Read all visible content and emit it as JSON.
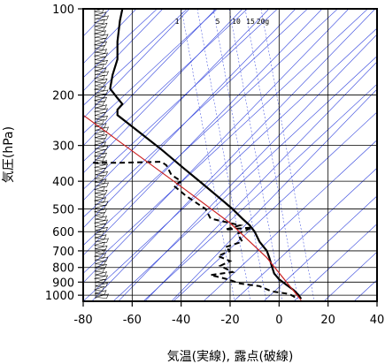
{
  "chart_data": {
    "type": "line",
    "xlabel": "気温(実線), 露点(破線)",
    "ylabel": "気圧(hPa)",
    "xlim": [
      -80,
      40
    ],
    "ylim": [
      1050,
      100
    ],
    "y_scale": "log",
    "x_ticks": [
      -80,
      -60,
      -40,
      -20,
      0,
      20,
      40
    ],
    "y_ticks": [
      100,
      200,
      300,
      400,
      500,
      600,
      700,
      800,
      900,
      1000
    ],
    "mixing_ratio_labels": [
      "1",
      "5",
      "10",
      "15",
      "20g"
    ],
    "colors": {
      "guides": "#3344dd",
      "parcel": "#cc2222",
      "profile": "#000000",
      "grid": "#000000"
    },
    "series": [
      {
        "role": "temperature",
        "style": "solid",
        "points": [
          [
            -64,
            100
          ],
          [
            -65,
            110
          ],
          [
            -66,
            130
          ],
          [
            -66,
            150
          ],
          [
            -68,
            170
          ],
          [
            -69,
            190
          ],
          [
            -66,
            205
          ],
          [
            -64,
            215
          ],
          [
            -66,
            225
          ],
          [
            -66,
            235
          ],
          [
            -57,
            270
          ],
          [
            -48,
            310
          ],
          [
            -39,
            360
          ],
          [
            -31,
            410
          ],
          [
            -24,
            460
          ],
          [
            -19,
            500
          ],
          [
            -15,
            540
          ],
          [
            -12,
            570
          ],
          [
            -10,
            600
          ],
          [
            -8,
            650
          ],
          [
            -5,
            700
          ],
          [
            -4,
            740
          ],
          [
            -3,
            790
          ],
          [
            -2,
            840
          ],
          [
            0,
            880
          ],
          [
            3,
            920
          ],
          [
            6,
            960
          ],
          [
            8,
            1000
          ],
          [
            9,
            1030
          ]
        ]
      },
      {
        "role": "dew-point",
        "style": "dashed",
        "points": [
          [
            -76,
            345
          ],
          [
            -65,
            345
          ],
          [
            -48,
            342
          ],
          [
            -46,
            352
          ],
          [
            -44,
            380
          ],
          [
            -40,
            400
          ],
          [
            -43,
            415
          ],
          [
            -38,
            450
          ],
          [
            -30,
            500
          ],
          [
            -28,
            540
          ],
          [
            -16,
            570
          ],
          [
            -22,
            590
          ],
          [
            -11,
            580
          ],
          [
            -17,
            610
          ],
          [
            -15,
            650
          ],
          [
            -22,
            680
          ],
          [
            -20,
            700
          ],
          [
            -25,
            730
          ],
          [
            -20,
            760
          ],
          [
            -24,
            790
          ],
          [
            -19,
            830
          ],
          [
            -28,
            850
          ],
          [
            -21,
            880
          ],
          [
            -16,
            910
          ],
          [
            -8,
            930
          ],
          [
            -3,
            970
          ],
          [
            4,
            990
          ],
          [
            6,
            1010
          ],
          [
            7,
            1030
          ]
        ]
      },
      {
        "role": "parcel",
        "style": "solid-thin",
        "points": [
          [
            -80,
            235
          ],
          [
            -38,
            430
          ],
          [
            -20,
            560
          ],
          [
            -5,
            740
          ],
          [
            9,
            1040
          ]
        ]
      }
    ],
    "winds": "pennant barbs along the left edge, 100–1000 hPa"
  }
}
